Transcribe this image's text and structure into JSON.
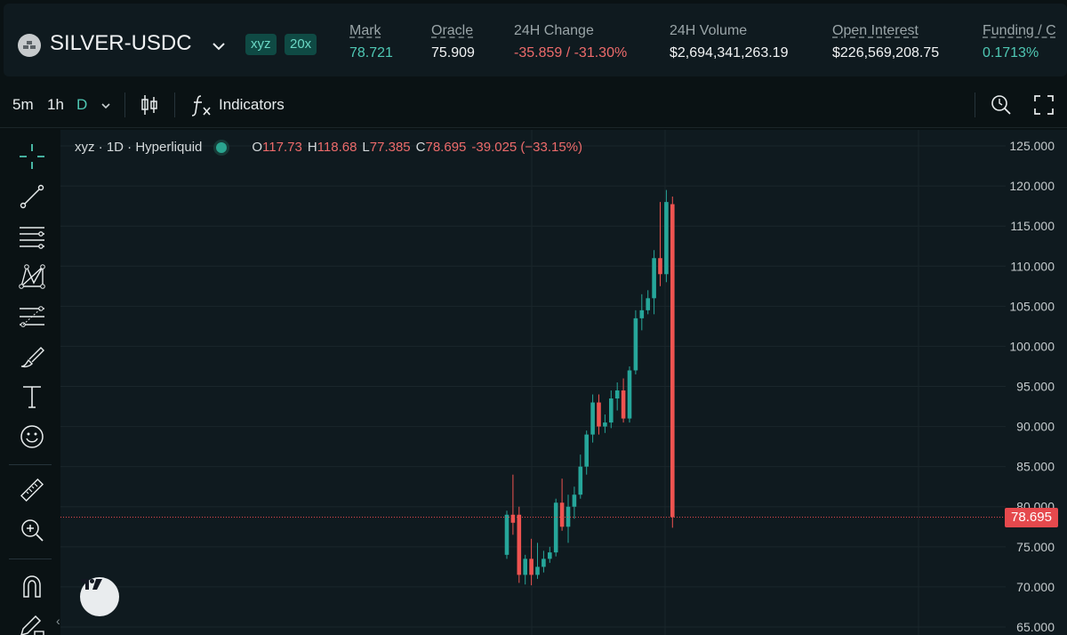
{
  "header": {
    "pair": "SILVER-USDC",
    "dex_badge": "xyz",
    "leverage_badge": "20x",
    "stats": [
      {
        "label": "Mark",
        "value": "78.721",
        "color": "#4fc8b4",
        "dashed": true
      },
      {
        "label": "Oracle",
        "value": "75.909",
        "dashed": true
      },
      {
        "label": "24H Change",
        "value": "-35.859 / -31.30%",
        "color": "#ed6b6b"
      },
      {
        "label": "24H Volume",
        "value": "$2,694,341,263.19"
      },
      {
        "label": "Open Interest",
        "value": "$226,569,208.75",
        "dashed": true
      },
      {
        "label": "Funding / C",
        "value": "0.1713%",
        "color": "#4fc8b4",
        "dashed": true
      }
    ]
  },
  "toolbar": {
    "timeframes": [
      "5m",
      "1h",
      "D"
    ],
    "active_timeframe": "D",
    "indicators_label": "Indicators",
    "icons": [
      "candlestick-chart-icon",
      "function-icon",
      "replay-search-icon",
      "fullscreen-icon"
    ]
  },
  "tools": [
    "crosshair-icon",
    "trend-line-icon",
    "horizontal-lines-icon",
    "pattern-icon",
    "fib-levels-icon",
    "brush-icon",
    "text-icon",
    "emoji-icon",
    "ruler-icon",
    "zoom-in-icon",
    "magnet-icon",
    "pencil-lock-icon"
  ],
  "legend": {
    "source": "xyz · 1D · Hyperliquid",
    "open_key": "O",
    "open": "117.73",
    "high_key": "H",
    "high": "118.68",
    "low_key": "L",
    "low": "77.385",
    "close_key": "C",
    "close": "78.695",
    "change": "-39.025 (−33.15%)"
  },
  "colors": {
    "up": "#26a69a",
    "down": "#ef5350",
    "accent": "#4fc8b4",
    "price_line": "#e5494d"
  },
  "chart_data": {
    "type": "candlestick",
    "y_axis": {
      "ticks": [
        125,
        120,
        115,
        110,
        105,
        100,
        95,
        90,
        85,
        80,
        75,
        70,
        65
      ],
      "tick_labels": [
        "125.000",
        "120.000",
        "115.000",
        "110.000",
        "105.000",
        "100.000",
        "95.000",
        "90.000",
        "85.000",
        "80.000",
        "75.000",
        "70.000",
        "65.000"
      ],
      "ylim": [
        64,
        127
      ]
    },
    "last_price_label": "78.695",
    "last_price": 78.695,
    "candles": [
      {
        "o": 74.0,
        "h": 79.5,
        "l": 73.5,
        "c": 79.0
      },
      {
        "o": 79.0,
        "h": 84.0,
        "l": 76.5,
        "c": 78.0
      },
      {
        "o": 79.0,
        "h": 80.0,
        "l": 70.5,
        "c": 71.5
      },
      {
        "o": 71.5,
        "h": 74.0,
        "l": 70.3,
        "c": 73.5
      },
      {
        "o": 73.5,
        "h": 76.0,
        "l": 70.2,
        "c": 71.5
      },
      {
        "o": 71.5,
        "h": 75.5,
        "l": 71.0,
        "c": 72.5
      },
      {
        "o": 72.5,
        "h": 74.5,
        "l": 71.8,
        "c": 73.5
      },
      {
        "o": 73.5,
        "h": 75.0,
        "l": 73.0,
        "c": 74.3
      },
      {
        "o": 74.3,
        "h": 81.0,
        "l": 73.8,
        "c": 80.5
      },
      {
        "o": 80.5,
        "h": 83.5,
        "l": 77.0,
        "c": 77.5
      },
      {
        "o": 77.5,
        "h": 81.5,
        "l": 75.5,
        "c": 80.0
      },
      {
        "o": 80.0,
        "h": 82.5,
        "l": 78.5,
        "c": 81.5
      },
      {
        "o": 81.5,
        "h": 86.5,
        "l": 81.0,
        "c": 85.0
      },
      {
        "o": 85.0,
        "h": 89.5,
        "l": 84.0,
        "c": 89.0
      },
      {
        "o": 89.0,
        "h": 94.0,
        "l": 88.0,
        "c": 93.0
      },
      {
        "o": 93.0,
        "h": 94.0,
        "l": 89.0,
        "c": 90.0
      },
      {
        "o": 90.0,
        "h": 91.5,
        "l": 89.2,
        "c": 90.5
      },
      {
        "o": 90.5,
        "h": 94.5,
        "l": 89.8,
        "c": 93.5
      },
      {
        "o": 93.5,
        "h": 95.5,
        "l": 92.0,
        "c": 94.5
      },
      {
        "o": 94.5,
        "h": 96.0,
        "l": 90.5,
        "c": 91.0
      },
      {
        "o": 91.0,
        "h": 97.5,
        "l": 90.5,
        "c": 97.0
      },
      {
        "o": 97.0,
        "h": 104.5,
        "l": 96.5,
        "c": 103.5
      },
      {
        "o": 103.5,
        "h": 106.5,
        "l": 102.0,
        "c": 104.5
      },
      {
        "o": 104.5,
        "h": 107.0,
        "l": 104.0,
        "c": 106.0
      },
      {
        "o": 106.0,
        "h": 112.0,
        "l": 104.0,
        "c": 111.0
      },
      {
        "o": 111.0,
        "h": 118.0,
        "l": 107.5,
        "c": 109.0
      },
      {
        "o": 109.0,
        "h": 119.5,
        "l": 108.0,
        "c": 118.0
      },
      {
        "o": 117.73,
        "h": 118.68,
        "l": 77.385,
        "c": 78.695
      }
    ]
  }
}
